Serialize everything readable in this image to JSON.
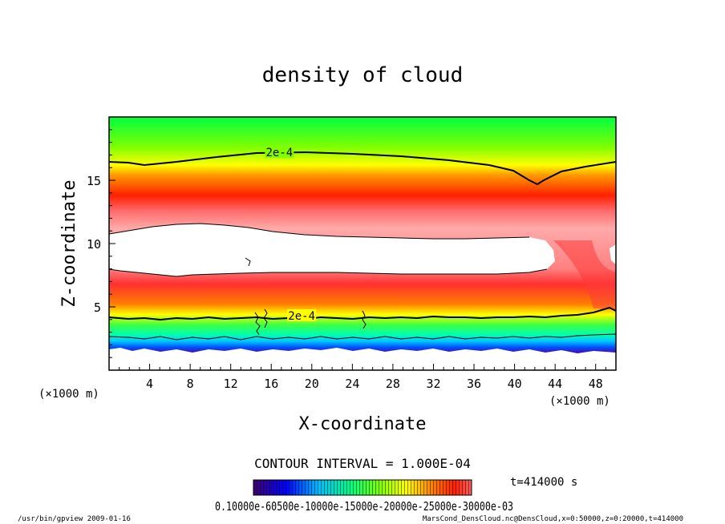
{
  "chart_data": {
    "type": "heatmap",
    "title": "density of cloud",
    "xlabel": "X-coordinate",
    "ylabel": "Z-coordinate",
    "x_unit": "(×1000 m)",
    "y_unit": "(×1000 m)",
    "xlim": [
      0,
      50
    ],
    "ylim": [
      0,
      20
    ],
    "x_ticks": [
      "4",
      "8",
      "12",
      "16",
      "20",
      "24",
      "28",
      "32",
      "36",
      "40",
      "44",
      "48"
    ],
    "y_ticks": [
      "5",
      "10",
      "15"
    ],
    "contour_labels": [
      {
        "text": "2e-4",
        "x": 16.8,
        "z": 17.2
      },
      {
        "text": "2e-4",
        "x": 19.0,
        "z": 4.3
      }
    ],
    "contour_interval": "CONTOUR INTERVAL = 1.000E-04",
    "time_label": "t=414000 s",
    "colorbar_labels": "0.10000e-60500e-10000e-15000e-20000e-25000e-30000e-03",
    "colormap": [
      "#400070",
      "#0000ff",
      "#00bfff",
      "#00ff80",
      "#80ff00",
      "#ffff00",
      "#ff8000",
      "#ff2000",
      "#ff6060"
    ],
    "grid": false
  },
  "footer": {
    "left": "/usr/bin/gpview  2009-01-16",
    "right": "MarsCond_DensCloud.nc@DensCloud,x=0:50000,z=0:20000,t=414000"
  }
}
